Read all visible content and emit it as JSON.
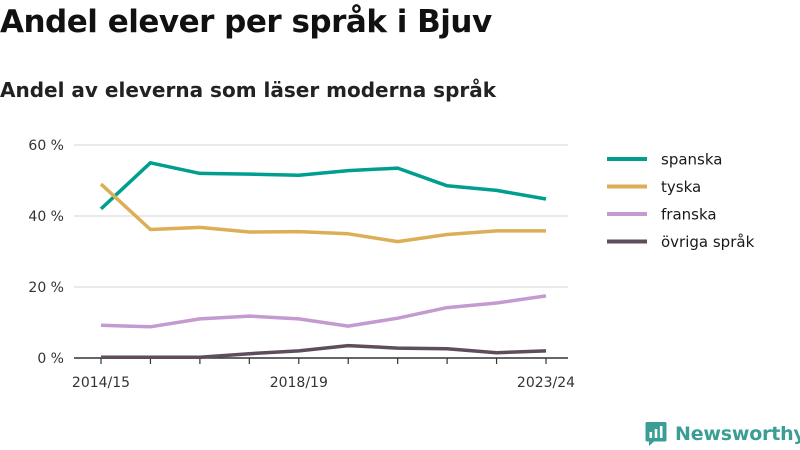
{
  "chart_data": {
    "type": "line",
    "title": "Andel elever per språk i Bjuv",
    "subtitle": "Andel av eleverna som läser moderna språk",
    "x": [
      "2014/15",
      "2015/16",
      "2016/17",
      "2017/18",
      "2018/19",
      "2019/20",
      "2020/21",
      "2021/22",
      "2022/23",
      "2023/24"
    ],
    "x_tick_labels": [
      "2014/15",
      "2018/19",
      "2023/24"
    ],
    "x_tick_indices": [
      0,
      4,
      9
    ],
    "ylim": [
      0,
      60
    ],
    "y_ticks": [
      0,
      20,
      40,
      60
    ],
    "y_tick_labels": [
      "0 %",
      "20 %",
      "40 %",
      "60 %"
    ],
    "grid": true,
    "legend_position": "right",
    "series": [
      {
        "name": "spanska",
        "color": "#009e8e",
        "values": [
          42.0,
          55.0,
          52.0,
          51.8,
          51.5,
          52.8,
          53.5,
          48.5,
          47.2,
          44.8
        ]
      },
      {
        "name": "tyska",
        "color": "#dcae56",
        "values": [
          49.0,
          36.2,
          36.8,
          35.5,
          35.6,
          35.0,
          32.8,
          34.8,
          35.8,
          35.8
        ]
      },
      {
        "name": "franska",
        "color": "#c49ad0",
        "values": [
          9.2,
          8.8,
          11.0,
          11.8,
          11.0,
          9.0,
          11.2,
          14.2,
          15.5,
          17.5
        ]
      },
      {
        "name": "övriga språk",
        "color": "#5e4e5b",
        "values": [
          0.2,
          0.2,
          0.2,
          1.2,
          2.0,
          3.5,
          2.8,
          2.6,
          1.5,
          2.0
        ]
      }
    ]
  },
  "brand": {
    "name": "Newsworthy",
    "color": "#3a9e94"
  }
}
